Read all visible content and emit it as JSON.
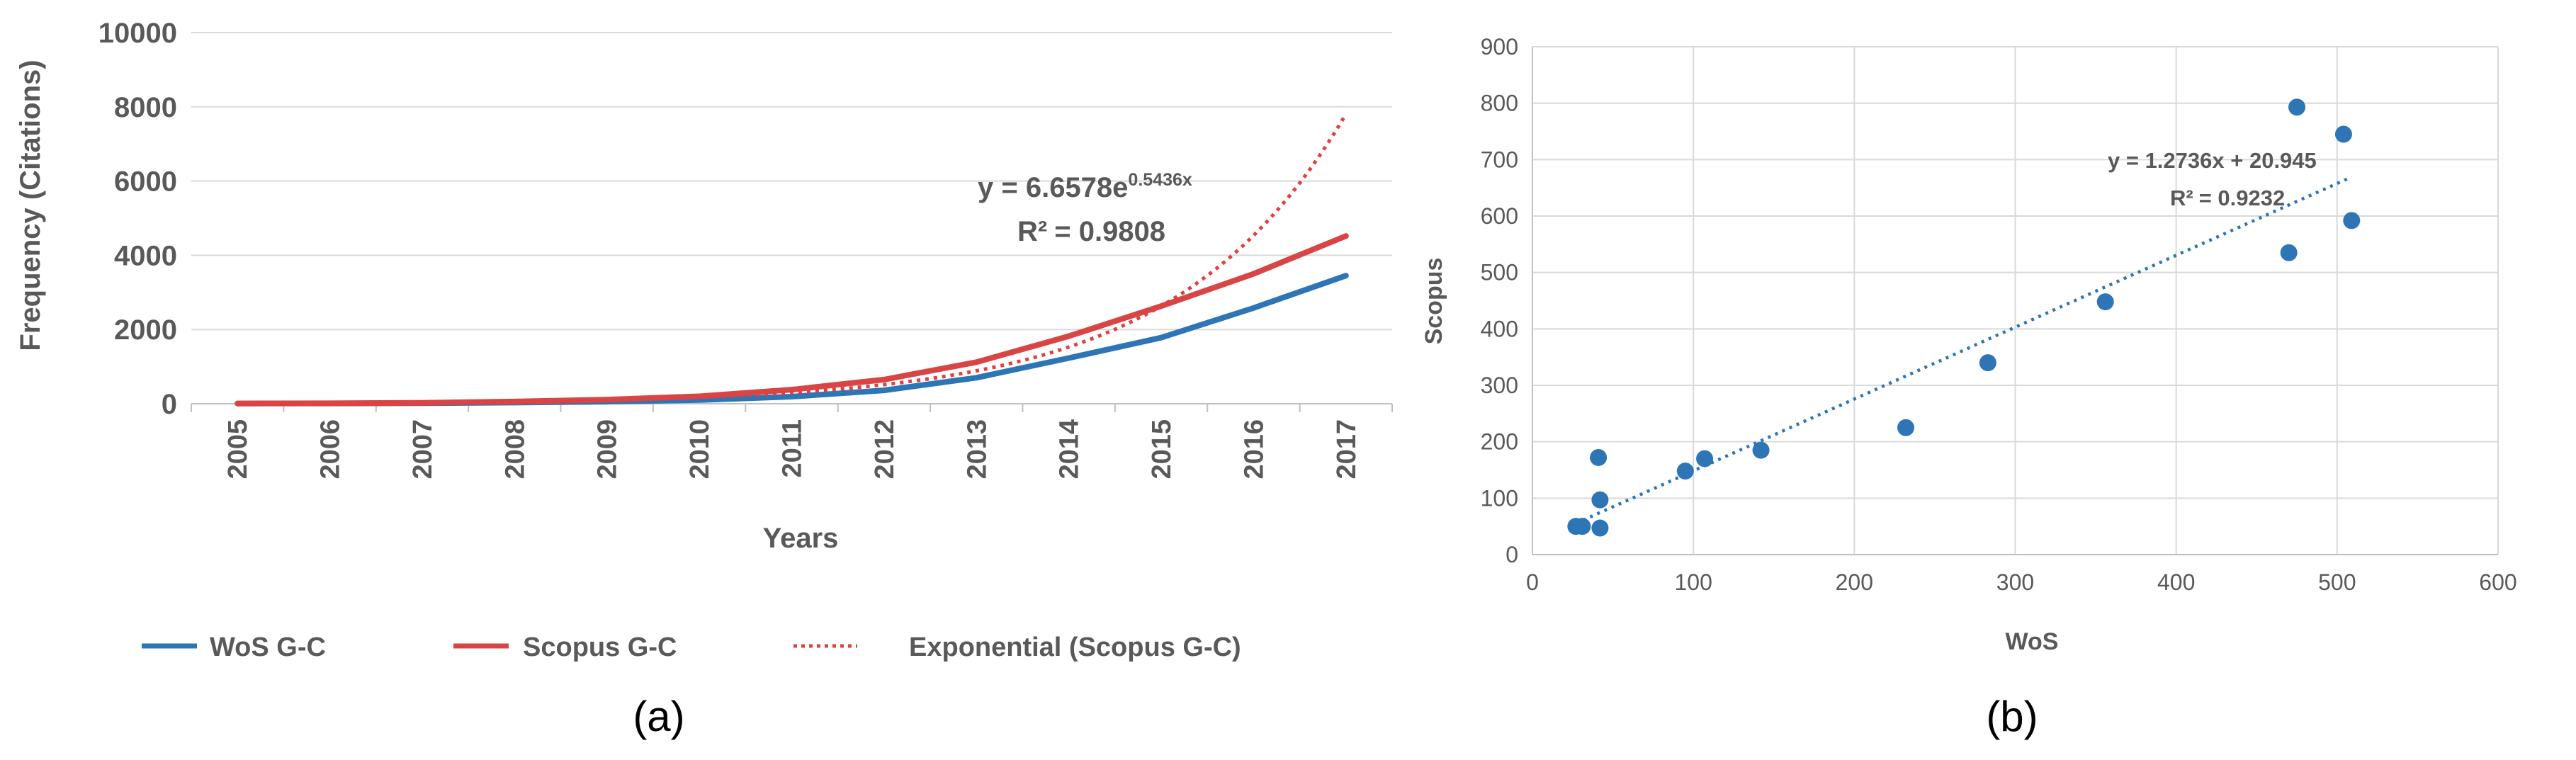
{
  "chart_data": [
    {
      "type": "line",
      "panel_label": "(a)",
      "title": "",
      "xlabel": "Years",
      "ylabel": "Frequency (Citations)",
      "categories": [
        "2005",
        "2006",
        "2007",
        "2008",
        "2009",
        "2010",
        "2011",
        "2012",
        "2013",
        "2014",
        "2015",
        "2016",
        "2017"
      ],
      "ylim": [
        0,
        10000
      ],
      "yticks": [
        0,
        2000,
        4000,
        6000,
        8000,
        10000
      ],
      "ytick_labels": [
        "0",
        "2000",
        "4000",
        "6000",
        "8000",
        "10000"
      ],
      "grid": true,
      "legend_position": "bottom",
      "series": [
        {
          "name": "WoS G-C",
          "color": "#2E75B6",
          "style": "solid",
          "values": [
            5,
            8,
            15,
            30,
            55,
            100,
            190,
            360,
            700,
            1230,
            1780,
            2580,
            3450
          ]
        },
        {
          "name": "Scopus G-C",
          "color": "#D94545",
          "style": "solid",
          "values": [
            8,
            12,
            25,
            60,
            110,
            200,
            380,
            650,
            1120,
            1820,
            2630,
            3500,
            4520
          ]
        },
        {
          "name": "Exponential (Scopus G-C)",
          "color": "#E04040",
          "style": "dotted",
          "values": [
            11.4,
            19.6,
            33.8,
            58.2,
            100.2,
            172.5,
            297.0,
            511.5,
            880.6,
            1516.4,
            2611.1,
            4496.0,
            7741.7
          ]
        }
      ],
      "annotation": {
        "equation_base": "y = 6.6578e",
        "equation_exponent": "0.5436x",
        "r2_label": "R²",
        "r2_value": "= 0.9808"
      }
    },
    {
      "type": "scatter",
      "panel_label": "(b)",
      "title": "",
      "xlabel": "WoS",
      "ylabel": "Scopus",
      "xlim": [
        0,
        600
      ],
      "ylim": [
        0,
        900
      ],
      "xticks": [
        0,
        100,
        200,
        300,
        400,
        500,
        600
      ],
      "xtick_labels": [
        "0",
        "100",
        "200",
        "300",
        "400",
        "500",
        "600"
      ],
      "yticks": [
        0,
        100,
        200,
        300,
        400,
        500,
        600,
        700,
        800,
        900
      ],
      "ytick_labels": [
        "0",
        "100",
        "200",
        "300",
        "400",
        "500",
        "600",
        "700",
        "800",
        "900"
      ],
      "grid": true,
      "point_color": "#2E75B6",
      "points": [
        {
          "x": 27,
          "y": 50
        },
        {
          "x": 31,
          "y": 50
        },
        {
          "x": 41,
          "y": 172
        },
        {
          "x": 42,
          "y": 97
        },
        {
          "x": 42,
          "y": 47
        },
        {
          "x": 95,
          "y": 148
        },
        {
          "x": 107,
          "y": 170
        },
        {
          "x": 142,
          "y": 185
        },
        {
          "x": 232,
          "y": 225
        },
        {
          "x": 283,
          "y": 340
        },
        {
          "x": 356,
          "y": 448
        },
        {
          "x": 470,
          "y": 535
        },
        {
          "x": 475,
          "y": 793
        },
        {
          "x": 504,
          "y": 745
        },
        {
          "x": 509,
          "y": 592
        }
      ],
      "trendline": {
        "type": "linear",
        "slope": 1.2736,
        "intercept": 20.945,
        "x_range": [
          27,
          509
        ],
        "color": "#2E75B6",
        "style": "dotted"
      },
      "annotation": {
        "equation": "y = 1.2736x + 20.945",
        "r2_label": "R²",
        "r2_value": "= 0.9232"
      }
    }
  ]
}
